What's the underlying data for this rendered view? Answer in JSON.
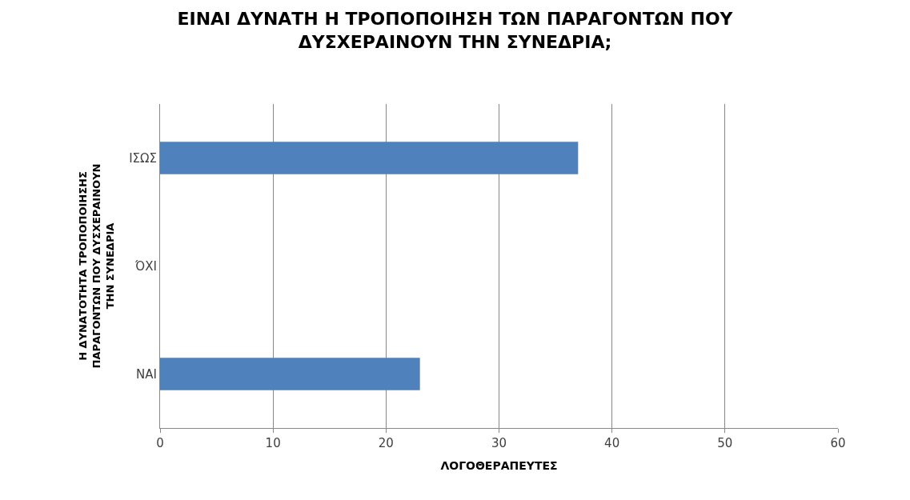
{
  "chart_data": {
    "type": "bar",
    "orientation": "horizontal",
    "title": "ΕΙΝΑΙ ΔΥΝΑΤΗ Η ΤΡΟΠΟΠΟΙΗΣΗ ΤΩΝ ΠΑΡΑΓΟΝΤΩΝ ΠΟΥ ΔΥΣΧΕΡΑΙΝΟΥΝ ΤΗΝ ΣΥΝΕΔΡΙΑ;",
    "xlabel": "ΛΟΓΟΘΕΡΑΠΕΥΤΕΣ",
    "ylabel": "Η ΔΥΝΑΤΟΤΗΤΑ ΤΡΟΠΟΠΟΙΗΣΗΣ ΠΑΡΑΓΟΝΤΩΝ ΠΟΥ ΔΥΣΧΕΡΑΙΝΟΥΝ ΤΗΝ ΣΥΝΕΔΡΙΑ",
    "categories": [
      "ΙΣΩΣ",
      "ΌΧΙ",
      "ΝΑΙ"
    ],
    "values": [
      37,
      0,
      23
    ],
    "color": "#4f81bd",
    "xlim": [
      0,
      60
    ],
    "xticks": [
      0,
      10,
      20,
      30,
      40,
      50,
      60
    ],
    "grid": "x"
  }
}
